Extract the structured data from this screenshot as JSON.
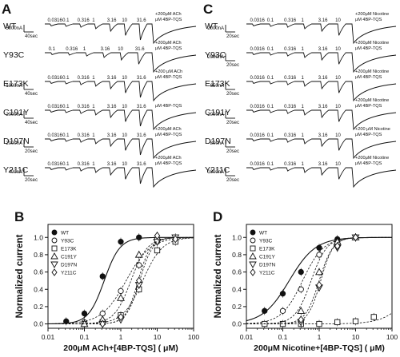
{
  "panels": {
    "A": {
      "letter": "A",
      "rows": [
        {
          "label": "WT",
          "conc": [
            "0.0316",
            "0.1",
            "0.316",
            "1",
            "3.16",
            "10",
            "31.6"
          ],
          "ann1": "+200μM ACh",
          "ann2": "μM 4BP-TQS",
          "scale_y": "5000nA",
          "scale_x": "40sec"
        },
        {
          "label": "Y93C",
          "conc": [
            "0.1",
            "0.316",
            "1",
            "3.16",
            "10",
            "31.6"
          ],
          "ann1": "+200μM ACh",
          "ann2": "μM 4BP-TQS",
          "scale_y": "",
          "scale_x": ""
        },
        {
          "label": "E173K",
          "conc": [
            "0.0316",
            "0.1",
            "0.316",
            "1",
            "3.16",
            "10",
            "31.6"
          ],
          "ann1": "+200 μM ACh",
          "ann2": "μM 4BP-TQS",
          "scale_y": "1000nA",
          "scale_x": "40sec"
        },
        {
          "label": "C191Y",
          "conc": [
            "0.0316",
            "0.1",
            "0.316",
            "1",
            "3.16",
            "10",
            "31.6"
          ],
          "ann1": "",
          "ann2": "μM 4BP-TQS",
          "scale_y": "2000nA",
          "scale_x": "40sec"
        },
        {
          "label": "D197N",
          "conc": [
            "0.0316",
            "0.1",
            "0.316",
            "1",
            "3.16",
            "10",
            "31.6"
          ],
          "ann1": "+200μM ACh",
          "ann2": "μM 4BP-TQS",
          "scale_y": "2000nA",
          "scale_x": "20sec"
        },
        {
          "label": "Y211C",
          "conc": [
            "0.0316",
            "0.1",
            "0.316",
            "1",
            "3.16",
            "10",
            "31.6"
          ],
          "ann1": "+200μM ACh",
          "ann2": "μM 4BP-TQS",
          "scale_y": "400nA",
          "scale_x": "20sec"
        }
      ]
    },
    "C": {
      "letter": "C",
      "rows": [
        {
          "label": "WT",
          "conc": [
            "0.0316",
            "0.1",
            "0.316",
            "1",
            "3.16",
            "10"
          ],
          "ann1": "+200μM Nicotine",
          "ann2": "μM 4BP-TQS",
          "scale_y": "2000nA",
          "scale_x": "20sec"
        },
        {
          "label": "Y93C",
          "conc": [
            "0.0316",
            "0.1",
            "0.316",
            "1",
            "3.16",
            "10"
          ],
          "ann1": "+200μM Nicotine",
          "ann2": "μM 4BP-TQS",
          "scale_y": "2000nA",
          "scale_x": "20sec"
        },
        {
          "label": "E173K",
          "conc": [
            "0.0316",
            "0.1",
            "0.316",
            "1",
            "3.16",
            "10"
          ],
          "ann1": "+200μM Nicotine",
          "ann2": "μM 4BP-TQS",
          "scale_y": "650nA",
          "scale_x": "20sec"
        },
        {
          "label": "C191Y",
          "conc": [
            "0.0316",
            "0.1",
            "0.316",
            "1",
            "3.16",
            "10"
          ],
          "ann1": "+200μM Nicotine",
          "ann2": "μM 4BP-TQS",
          "scale_y": "2000nA",
          "scale_x": "20sec"
        },
        {
          "label": "D197N",
          "conc": [
            "0.0316",
            "0.1",
            "0.316",
            "1",
            "3.16",
            "10"
          ],
          "ann1": "+200 μM Nicotine",
          "ann2": "μM 4BP-TQS",
          "scale_y": "800nA",
          "scale_x": "20sec"
        },
        {
          "label": "Y211C",
          "conc": [
            "0.0316",
            "0.1",
            "0.316",
            "1",
            "3.16",
            "10"
          ],
          "ann1": "+200μM Nicotine",
          "ann2": "μM 4BP-TQS",
          "scale_y": "1000nA",
          "scale_x": "20sec"
        }
      ]
    }
  },
  "chart_data": [
    {
      "panel": "B",
      "type": "scatter",
      "xscale": "log",
      "xlim": [
        0.01,
        100
      ],
      "ylim": [
        -0.05,
        1.15
      ],
      "xticks": [
        "0.01",
        "0.1",
        "1",
        "10",
        "100"
      ],
      "yticks": [
        "0.0",
        "0.2",
        "0.4",
        "0.6",
        "0.8",
        "1.0"
      ],
      "xlabel": "200μM ACh+[4BP-TQS] ( μM)",
      "ylabel": "Normalized current",
      "legend_position": "top-left",
      "series": [
        {
          "name": "WT",
          "marker": "filled-circle",
          "x": [
            0.0316,
            0.1,
            0.316,
            1,
            3.16
          ],
          "y": [
            0.03,
            0.12,
            0.55,
            0.95,
            1.0
          ],
          "ec50": 0.35,
          "hill": 2.0
        },
        {
          "name": "Y93C",
          "marker": "open-circle",
          "x": [
            0.1,
            0.316,
            1,
            3.16,
            10
          ],
          "y": [
            0.02,
            0.12,
            0.38,
            0.68,
            0.95
          ],
          "ec50": 1.4,
          "hill": 1.3
        },
        {
          "name": "E173K",
          "marker": "open-square",
          "x": [
            0.1,
            0.316,
            1,
            3.16,
            10,
            31.6
          ],
          "y": [
            0.0,
            0.02,
            0.1,
            0.4,
            0.85,
            0.95
          ],
          "ec50": 4.0,
          "hill": 1.6
        },
        {
          "name": "C191Y",
          "marker": "open-triangle",
          "x": [
            0.1,
            0.316,
            1,
            3.16,
            10
          ],
          "y": [
            0.0,
            0.05,
            0.3,
            0.8,
            1.0
          ],
          "ec50": 1.9,
          "hill": 1.9
        },
        {
          "name": "D197N",
          "marker": "open-down-triangle",
          "x": [
            0.316,
            1,
            3.16,
            10,
            31.6
          ],
          "y": [
            0.0,
            0.05,
            0.45,
            0.95,
            1.0
          ],
          "ec50": 3.3,
          "hill": 2.4
        },
        {
          "name": "Y211C",
          "marker": "open-diamond",
          "x": [
            0.316,
            1,
            3.16,
            10,
            31.6
          ],
          "y": [
            0.0,
            0.08,
            0.5,
            1.02,
            0.98
          ],
          "ec50": 3.0,
          "hill": 2.5
        }
      ]
    },
    {
      "panel": "D",
      "type": "scatter",
      "xscale": "log",
      "xlim": [
        0.01,
        100
      ],
      "ylim": [
        -0.05,
        1.15
      ],
      "xticks": [
        "0.01",
        "0.1",
        "1",
        "10",
        "100"
      ],
      "yticks": [
        "0.0",
        "0.2",
        "0.4",
        "0.6",
        "0.8",
        "1.0"
      ],
      "xlabel": "200μM Nicotine+[4BP-TQS] ( μM)",
      "ylabel": "Normalized current",
      "legend_position": "top-left",
      "series": [
        {
          "name": "WT",
          "marker": "filled-circle",
          "x": [
            0.0316,
            0.1,
            0.316,
            1,
            3.16,
            10
          ],
          "y": [
            0.15,
            0.35,
            0.6,
            0.88,
            0.98,
            1.0
          ],
          "ec50": 0.15,
          "hill": 1.2
        },
        {
          "name": "Y93C",
          "marker": "open-circle",
          "x": [
            0.1,
            0.316,
            1,
            3.16,
            10
          ],
          "y": [
            0.15,
            0.4,
            0.8,
            0.95,
            1.0
          ],
          "ec50": 0.35,
          "hill": 1.5
        },
        {
          "name": "E173K",
          "marker": "open-square",
          "x": [
            0.0316,
            0.1,
            0.316,
            1,
            3.16,
            10,
            31.6
          ],
          "y": [
            0.0,
            0.0,
            0.0,
            0.0,
            0.02,
            0.03,
            0.08
          ],
          "ec50": 500,
          "hill": 1.2
        },
        {
          "name": "C191Y",
          "marker": "open-triangle",
          "x": [
            0.316,
            1,
            3.16,
            10
          ],
          "y": [
            0.15,
            0.6,
            0.95,
            1.0
          ],
          "ec50": 0.6,
          "hill": 2.0
        },
        {
          "name": "D197N",
          "marker": "open-down-triangle",
          "x": [
            0.316,
            1,
            3.16,
            10
          ],
          "y": [
            0.02,
            0.42,
            0.88,
            1.0
          ],
          "ec50": 1.1,
          "hill": 2.5
        },
        {
          "name": "Y211C",
          "marker": "open-diamond",
          "x": [
            0.316,
            1,
            3.16,
            10
          ],
          "y": [
            0.05,
            0.45,
            0.9,
            1.0
          ],
          "ec50": 1.0,
          "hill": 2.3
        }
      ]
    }
  ]
}
